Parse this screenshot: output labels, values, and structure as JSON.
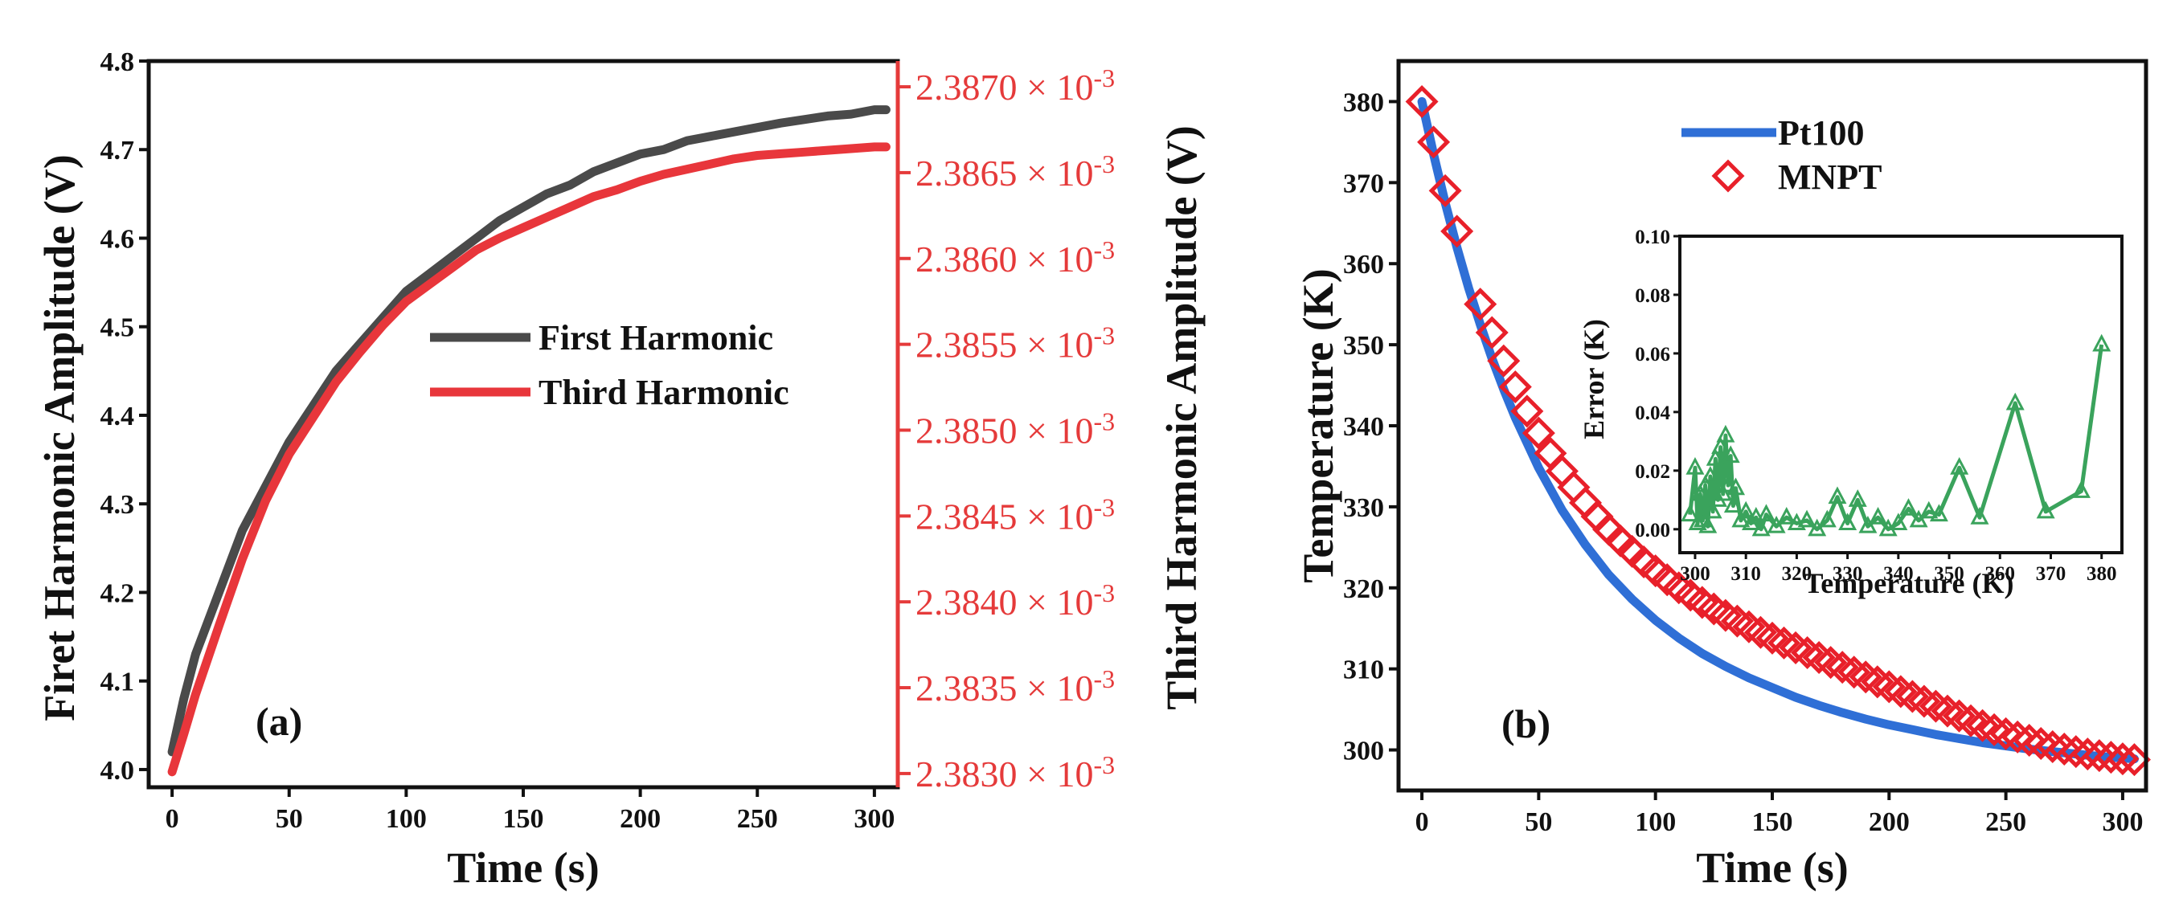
{
  "chart_data": [
    {
      "type": "line",
      "panel_label": "(a)",
      "xlabel": "Time (s)",
      "ylabel": "Firet Harmonic Amplitude (V)",
      "y2label": "Third Harmonic Amplitude (V)",
      "xlim": [
        -10,
        310
      ],
      "ylim": [
        3.98,
        4.8
      ],
      "y2lim": [
        2.38292,
        2.38715
      ],
      "xticks": [
        0,
        50,
        100,
        150,
        200,
        250,
        300
      ],
      "yticks": [
        4.0,
        4.1,
        4.2,
        4.3,
        4.4,
        4.5,
        4.6,
        4.7,
        4.8
      ],
      "yticklabels": [
        "4.0",
        "4.1",
        "4.2",
        "4.3",
        "4.4",
        "4.5",
        "4.6",
        "4.7",
        "4.8"
      ],
      "y2ticks": [
        2.383,
        2.3835,
        2.384,
        2.3845,
        2.385,
        2.3855,
        2.386,
        2.3865,
        2.387
      ],
      "y2ticklabels_mantissa": [
        "2.3830",
        "2.3835",
        "2.3840",
        "2.3845",
        "2.3850",
        "2.3855",
        "2.3860",
        "2.3865",
        "2.3870"
      ],
      "y2tick_suffix": "× 10",
      "y2tick_exponent": "-3",
      "legend_position": "center-right",
      "series": [
        {
          "name": "First Harmonic",
          "axis": "left",
          "color": "#4a4a4a",
          "x": [
            0,
            5,
            10,
            20,
            30,
            40,
            50,
            60,
            70,
            80,
            90,
            100,
            110,
            120,
            130,
            140,
            150,
            160,
            170,
            180,
            190,
            200,
            210,
            220,
            230,
            240,
            250,
            260,
            270,
            280,
            290,
            300,
            305
          ],
          "y": [
            4.02,
            4.08,
            4.13,
            4.2,
            4.27,
            4.32,
            4.37,
            4.41,
            4.45,
            4.48,
            4.51,
            4.54,
            4.56,
            4.58,
            4.6,
            4.62,
            4.635,
            4.65,
            4.66,
            4.675,
            4.685,
            4.695,
            4.7,
            4.71,
            4.715,
            4.72,
            4.725,
            4.73,
            4.734,
            4.738,
            4.74,
            4.745,
            4.745
          ]
        },
        {
          "name": "Third Harmonic",
          "axis": "right",
          "color": "#e8363b",
          "x": [
            0,
            5,
            10,
            20,
            30,
            40,
            50,
            60,
            70,
            80,
            90,
            100,
            110,
            120,
            130,
            140,
            150,
            160,
            170,
            180,
            190,
            200,
            210,
            220,
            230,
            240,
            250,
            260,
            270,
            280,
            290,
            300,
            305
          ],
          "y": [
            2.38301,
            2.38323,
            2.38346,
            2.38386,
            2.38425,
            2.38459,
            2.38486,
            2.38507,
            2.38528,
            2.38545,
            2.38561,
            2.38575,
            2.38585,
            2.38595,
            2.38605,
            2.38612,
            2.38618,
            2.38624,
            2.3863,
            2.38636,
            2.3864,
            2.38645,
            2.38649,
            2.38652,
            2.38655,
            2.38658,
            2.3866,
            2.38661,
            2.38662,
            2.38663,
            2.38664,
            2.38665,
            2.38665
          ]
        }
      ]
    },
    {
      "type": "line",
      "panel_label": "(b)",
      "xlabel": "Time (s)",
      "ylabel": "Temperature (K)",
      "xlim": [
        -10,
        310
      ],
      "ylim": [
        295,
        385
      ],
      "xticks": [
        0,
        50,
        100,
        150,
        200,
        250,
        300
      ],
      "yticks": [
        300,
        310,
        320,
        330,
        340,
        350,
        360,
        370,
        380
      ],
      "legend_position": "top-center",
      "series": [
        {
          "name": "Pt100",
          "color": "#2f6fd6",
          "marker": "none",
          "x": [
            0,
            5,
            10,
            15,
            20,
            25,
            30,
            35,
            40,
            50,
            60,
            70,
            80,
            90,
            100,
            110,
            120,
            130,
            140,
            150,
            160,
            170,
            180,
            190,
            200,
            210,
            220,
            230,
            240,
            250,
            260,
            270,
            280,
            290,
            300,
            305
          ],
          "y": [
            380,
            373.5,
            367.5,
            362,
            357,
            352.5,
            348.3,
            344.5,
            341,
            334.8,
            329.6,
            325.3,
            321.6,
            318.6,
            316,
            313.8,
            311.9,
            310.3,
            308.9,
            307.7,
            306.5,
            305.5,
            304.6,
            303.8,
            303.1,
            302.5,
            301.9,
            301.4,
            300.9,
            300.5,
            300.1,
            299.8,
            299.5,
            299.2,
            299,
            298.9
          ]
        },
        {
          "name": "MNPT",
          "color": "#e8202a",
          "marker": "diamond-open",
          "x": [
            0,
            5,
            10,
            15,
            25,
            30,
            35,
            40,
            45,
            50,
            55,
            60,
            65,
            70,
            75,
            80,
            85,
            90,
            95,
            100,
            105,
            110,
            115,
            120,
            125,
            130,
            135,
            140,
            145,
            150,
            155,
            160,
            165,
            170,
            175,
            180,
            185,
            190,
            195,
            200,
            205,
            210,
            215,
            220,
            225,
            230,
            235,
            240,
            245,
            250,
            255,
            260,
            265,
            270,
            275,
            280,
            285,
            290,
            295,
            300,
            305
          ],
          "y": [
            380,
            375,
            369,
            364,
            355,
            351.5,
            348,
            344.8,
            341.8,
            339.1,
            336.6,
            334.4,
            332.4,
            330.5,
            328.8,
            327.2,
            325.8,
            324.5,
            323.2,
            322.1,
            321,
            320,
            319.1,
            318.2,
            317.4,
            316.6,
            315.9,
            315.2,
            314.5,
            313.8,
            313.2,
            312.6,
            312,
            311.4,
            310.8,
            310.2,
            309.6,
            309,
            308.4,
            307.8,
            307.2,
            306.6,
            306,
            305.4,
            304.8,
            304.2,
            303.6,
            303,
            302.5,
            302,
            301.6,
            301.2,
            300.8,
            300.4,
            300.1,
            299.8,
            299.5,
            299.3,
            299.1,
            298.9,
            298.8
          ]
        }
      ],
      "inset": {
        "type": "line",
        "xlabel": "Temperature (K)",
        "ylabel": "Error (K)",
        "xlim": [
          297,
          384
        ],
        "ylim": [
          -0.008,
          0.1
        ],
        "xticks": [
          300,
          310,
          320,
          330,
          340,
          350,
          360,
          370,
          380
        ],
        "yticks": [
          0.0,
          0.02,
          0.04,
          0.06,
          0.08,
          0.1
        ],
        "yticklabels": [
          "0.00",
          "0.02",
          "0.04",
          "0.06",
          "0.08",
          "0.10"
        ],
        "series": [
          {
            "name": "Error",
            "color": "#3aa35c",
            "marker": "triangle",
            "x": [
              299,
              300,
              300.5,
              301,
              301.5,
              302,
              302.5,
              303,
              303.5,
              304,
              304.5,
              305,
              305.5,
              306,
              306.5,
              307,
              307.5,
              308,
              309,
              310,
              311,
              312,
              313,
              314,
              316,
              318,
              320,
              322,
              324,
              326,
              328,
              330,
              332,
              334,
              336,
              338,
              340,
              342,
              344,
              346,
              348,
              352,
              356,
              363,
              369,
              376,
              380
            ],
            "y": [
              0.005,
              0.021,
              0.002,
              0.012,
              0.003,
              0.015,
              0.001,
              0.018,
              0.006,
              0.024,
              0.01,
              0.028,
              0.012,
              0.032,
              0.015,
              0.025,
              0.008,
              0.014,
              0.003,
              0.006,
              0.002,
              0.004,
              0.0,
              0.005,
              0.001,
              0.004,
              0.002,
              0.003,
              0.0,
              0.003,
              0.011,
              0.002,
              0.01,
              0.001,
              0.004,
              0.0,
              0.002,
              0.007,
              0.003,
              0.006,
              0.005,
              0.021,
              0.004,
              0.043,
              0.006,
              0.013,
              0.063
            ]
          }
        ]
      }
    }
  ]
}
